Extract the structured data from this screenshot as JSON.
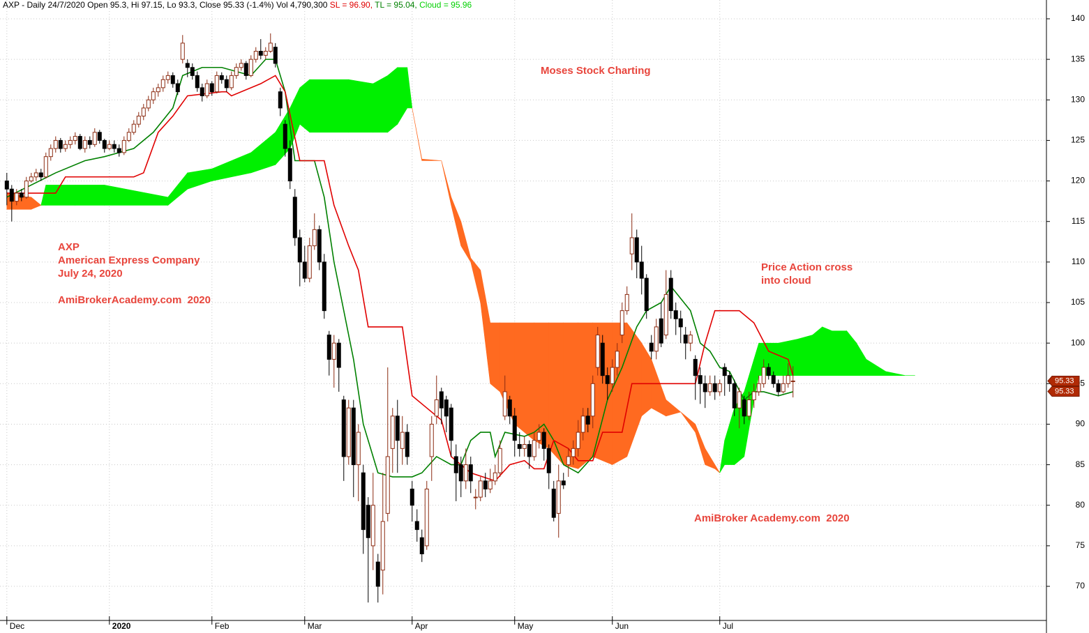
{
  "chart_data": {
    "type": "candlestick",
    "header": {
      "main": "AXP - Daily 24/7/2020 Open 95.3, Hi 97.15, Lo 93.3, Close 95.33 (-1.4%) Vol 4,790,300",
      "sl": "SL = 96.90,",
      "tl": "TL = 95.04,",
      "cloud": "Cloud = 95.96"
    },
    "annotations": [
      "Moses Stock Charting",
      "AXP",
      "American Express Company",
      "July 24, 2020",
      "AmiBrokerAcademy.com  2020",
      "Price Action cross",
      "into cloud",
      "AmiBroker Academy.com  2020"
    ],
    "xlim": [
      -1.4,
      212.9
    ],
    "xticks": [
      {
        "value": 0,
        "label": "Dec"
      },
      {
        "value": 21,
        "label": "2020"
      },
      {
        "value": 42,
        "label": "Feb"
      },
      {
        "value": 61,
        "label": "Mar"
      },
      {
        "value": 83,
        "label": "Apr"
      },
      {
        "value": 104,
        "label": "May"
      },
      {
        "value": 124,
        "label": "Jun"
      },
      {
        "value": 146,
        "label": "Jul"
      }
    ],
    "ylim": [
      65.79,
      142.32
    ],
    "yticks": [
      70,
      75,
      80,
      85,
      90,
      95,
      100,
      105,
      110,
      115,
      120,
      125,
      130,
      135,
      140
    ],
    "grid": true,
    "up_color": "#ffffff",
    "up_edge": "#8b2a10",
    "down_color": "#000000",
    "ohlc": [
      [
        120,
        121,
        117,
        119
      ],
      [
        119,
        119.5,
        115,
        117.5
      ],
      [
        117.5,
        119,
        117,
        118.5
      ],
      [
        118.5,
        119,
        117.5,
        118
      ],
      [
        118,
        120.5,
        117.8,
        120
      ],
      [
        120,
        121,
        119.8,
        120.5
      ],
      [
        120.5,
        121.5,
        120,
        121
      ],
      [
        121,
        121.5,
        120,
        120.5
      ],
      [
        120.5,
        123.5,
        120.3,
        123
      ],
      [
        123,
        124.5,
        122.5,
        124
      ],
      [
        124,
        125.5,
        123.5,
        125
      ],
      [
        125,
        125.3,
        123.5,
        124
      ],
      [
        124,
        125,
        123.6,
        124.5
      ],
      [
        124.5,
        125.5,
        124,
        125
      ],
      [
        125,
        126,
        124.5,
        125.5
      ],
      [
        125.5,
        125.8,
        123.8,
        124
      ],
      [
        124,
        125.5,
        123.5,
        125
      ],
      [
        125,
        125.5,
        124,
        124.5
      ],
      [
        124.5,
        126.5,
        124.2,
        126
      ],
      [
        126,
        126.3,
        124.6,
        125
      ],
      [
        125,
        125.2,
        123.5,
        124
      ],
      [
        124,
        125,
        123.8,
        124.5
      ],
      [
        124.5,
        125,
        123.5,
        124
      ],
      [
        124,
        124.5,
        123,
        123.5
      ],
      [
        123.5,
        125.5,
        123.2,
        125
      ],
      [
        125,
        126.5,
        124.8,
        126
      ],
      [
        126,
        127.5,
        125.7,
        127
      ],
      [
        127,
        128.5,
        126.6,
        128
      ],
      [
        128,
        129.5,
        127.5,
        129
      ],
      [
        129,
        130.5,
        128.6,
        130
      ],
      [
        130,
        131.5,
        129.5,
        131
      ],
      [
        131,
        132,
        130.4,
        131.5
      ],
      [
        131.5,
        133,
        131,
        132.5
      ],
      [
        132.5,
        133.5,
        132,
        133
      ],
      [
        133,
        133.4,
        131.5,
        132
      ],
      [
        132,
        132.5,
        130.6,
        131
      ],
      [
        135,
        138,
        134.5,
        137
      ],
      [
        134.5,
        135,
        132.8,
        134
      ],
      [
        134,
        134.5,
        132.5,
        133
      ],
      [
        133,
        133.5,
        131,
        131.5
      ],
      [
        131.5,
        132,
        129.8,
        130.5
      ],
      [
        130.5,
        132.5,
        130.2,
        132
      ],
      [
        132,
        132.3,
        130.5,
        131
      ],
      [
        131,
        133.5,
        130.8,
        133
      ],
      [
        133,
        133.4,
        132,
        132.5
      ],
      [
        132.5,
        133,
        131,
        131.5
      ],
      [
        131.5,
        133.5,
        131.2,
        133
      ],
      [
        133,
        134.5,
        132.6,
        134
      ],
      [
        134,
        135,
        133.6,
        134.5
      ],
      [
        134.5,
        134.8,
        132.5,
        133
      ],
      [
        133,
        135.5,
        132.8,
        135
      ],
      [
        135,
        136.5,
        134.6,
        136
      ],
      [
        136,
        137.5,
        135,
        135.5
      ],
      [
        135.5,
        136.5,
        135,
        136
      ],
      [
        136,
        138.2,
        135.8,
        137
      ],
      [
        136.5,
        137,
        134,
        134.5
      ],
      [
        131,
        131.5,
        128,
        129
      ],
      [
        127,
        127.5,
        123,
        124
      ],
      [
        124,
        125,
        119,
        120
      ],
      [
        118,
        119,
        112,
        113
      ],
      [
        113,
        114,
        107,
        110
      ],
      [
        110,
        112,
        107.5,
        108
      ],
      [
        108,
        113,
        107.5,
        112
      ],
      [
        112,
        116,
        111.5,
        114
      ],
      [
        114,
        114.5,
        109,
        110
      ],
      [
        110,
        111,
        103,
        104
      ],
      [
        101,
        101.5,
        96,
        98
      ],
      [
        98,
        101,
        94.5,
        100
      ],
      [
        100,
        100.5,
        94,
        97
      ],
      [
        93,
        93.5,
        83,
        86
      ],
      [
        86,
        93,
        85,
        92
      ],
      [
        92,
        93,
        81,
        85
      ],
      [
        85,
        90,
        80.5,
        89
      ],
      [
        84,
        85,
        74,
        77
      ],
      [
        80,
        81,
        68,
        76
      ],
      [
        75,
        84,
        72,
        80
      ],
      [
        73,
        74,
        68,
        70
      ],
      [
        72,
        84,
        69,
        78
      ],
      [
        79,
        97,
        78,
        86
      ],
      [
        87,
        92,
        84,
        91
      ],
      [
        91,
        93,
        84,
        88
      ],
      [
        87,
        91,
        85,
        89
      ],
      [
        89,
        90,
        85,
        86
      ],
      [
        82,
        83,
        78,
        80
      ],
      [
        78,
        79.5,
        75.5,
        77
      ],
      [
        76,
        77,
        73,
        74
      ],
      [
        75,
        83,
        74.5,
        82
      ],
      [
        86,
        91,
        83,
        90
      ],
      [
        91,
        96,
        90,
        93
      ],
      [
        94,
        94.5,
        90,
        92
      ],
      [
        93,
        93.5,
        89,
        91
      ],
      [
        92,
        92.5,
        86,
        88
      ],
      [
        86,
        87.5,
        80.5,
        84
      ],
      [
        85,
        86,
        81,
        83
      ],
      [
        83,
        87,
        82,
        85
      ],
      [
        85,
        86,
        81.5,
        83
      ],
      [
        81,
        82,
        79.5,
        81
      ],
      [
        81,
        83.5,
        80.5,
        83
      ],
      [
        83,
        84,
        81,
        82
      ],
      [
        82,
        84.5,
        81.5,
        83
      ],
      [
        83,
        85,
        82.5,
        84
      ],
      [
        84,
        88,
        83.5,
        87
      ],
      [
        91,
        96,
        90.5,
        94
      ],
      [
        93,
        93.5,
        90,
        91
      ],
      [
        91,
        92,
        86,
        88
      ],
      [
        87.5,
        89,
        86,
        87
      ],
      [
        87,
        88.5,
        86,
        87.5
      ],
      [
        87.5,
        88,
        84.5,
        86
      ],
      [
        86,
        89,
        85.5,
        88
      ],
      [
        88,
        90,
        87,
        89
      ],
      [
        89,
        89.5,
        85.5,
        87
      ],
      [
        87,
        87.5,
        82,
        84
      ],
      [
        82,
        83,
        78,
        78.5
      ],
      [
        79,
        85,
        76,
        83
      ],
      [
        83,
        84,
        82,
        82.5
      ],
      [
        85,
        87,
        83.5,
        86
      ],
      [
        86,
        88,
        85,
        87
      ],
      [
        87,
        90.5,
        86,
        89
      ],
      [
        89,
        92,
        88,
        91
      ],
      [
        91,
        92,
        89,
        90
      ],
      [
        91,
        96,
        89.5,
        95
      ],
      [
        97,
        102,
        96,
        101
      ],
      [
        100,
        101,
        95,
        96
      ],
      [
        96,
        97,
        93,
        95
      ],
      [
        95,
        98,
        94,
        97
      ],
      [
        97,
        100,
        96,
        99
      ],
      [
        101,
        105,
        100,
        104
      ],
      [
        104,
        107,
        103.5,
        106
      ],
      [
        111,
        116,
        109,
        113
      ],
      [
        113,
        114,
        108,
        110
      ],
      [
        110,
        112,
        106,
        108
      ],
      [
        108,
        108.5,
        103,
        104
      ],
      [
        100,
        101,
        98,
        99
      ],
      [
        99,
        103,
        98,
        102
      ],
      [
        103,
        105,
        99.5,
        100
      ],
      [
        101,
        109,
        100.5,
        106
      ],
      [
        108,
        109,
        103,
        104
      ],
      [
        104,
        105,
        101,
        103
      ],
      [
        103,
        104,
        100,
        102
      ],
      [
        101,
        102,
        98,
        100
      ],
      [
        100,
        101.5,
        99,
        101
      ],
      [
        98,
        98.5,
        93,
        96
      ],
      [
        96,
        97,
        92.5,
        95
      ],
      [
        95,
        96,
        92,
        94
      ],
      [
        94,
        96,
        93.5,
        95
      ],
      [
        95,
        96,
        93,
        94
      ],
      [
        94,
        95.5,
        93.5,
        95
      ],
      [
        97,
        97.5,
        93.5,
        96
      ],
      [
        96,
        96.5,
        94,
        95
      ],
      [
        95,
        95.5,
        91,
        92
      ],
      [
        92,
        94.5,
        89.5,
        94
      ],
      [
        93,
        93.5,
        90,
        91
      ],
      [
        91,
        94,
        90.5,
        93
      ],
      [
        93,
        95,
        92,
        94
      ],
      [
        94,
        96,
        93.5,
        95
      ],
      [
        95,
        98,
        94.5,
        97
      ],
      [
        97,
        97.5,
        95.5,
        96
      ],
      [
        96,
        96.5,
        94.5,
        95
      ],
      [
        95,
        95.5,
        93.5,
        94
      ],
      [
        94,
        96,
        93.8,
        95
      ],
      [
        95,
        97.5,
        94.5,
        96
      ],
      [
        95.3,
        97.15,
        93.3,
        95.33
      ]
    ],
    "lines": [
      {
        "color": "#008000",
        "x": [
          0,
          10,
          16,
          20,
          26,
          30,
          34,
          36,
          40,
          44,
          50,
          53,
          55,
          57,
          59,
          63,
          65,
          67,
          69,
          71,
          73,
          76,
          79,
          83,
          85,
          88,
          91,
          93,
          95,
          97,
          99,
          100,
          102,
          106,
          108,
          110,
          112,
          114,
          117,
          120,
          123,
          126,
          129,
          131,
          134,
          136,
          140,
          142,
          144,
          146,
          148,
          151,
          153,
          155,
          158,
          161
        ],
        "values": [
          118,
          121,
          122.5,
          123,
          124,
          126,
          129,
          133,
          134,
          134,
          133,
          135,
          135,
          131,
          122.5,
          122.5,
          118,
          110,
          104,
          98,
          90,
          84,
          83.5,
          83.5,
          84,
          86,
          85,
          85,
          88,
          89,
          89,
          86,
          89,
          88.5,
          89,
          90,
          88,
          85,
          84,
          86,
          93,
          97,
          102,
          104,
          105,
          107,
          104,
          100,
          99,
          97,
          96.5,
          93,
          94,
          94,
          93.5,
          94
        ]
      },
      {
        "color": "#e00000",
        "x": [
          0,
          10,
          12,
          26,
          28,
          31,
          34,
          37,
          44,
          45,
          46,
          52,
          55,
          57,
          60,
          65,
          67,
          70,
          72,
          74,
          81,
          83,
          86,
          89,
          91,
          95,
          100,
          103,
          106,
          108,
          110,
          112,
          115,
          117,
          120,
          122,
          126,
          128,
          141,
          143,
          145,
          150,
          153,
          156,
          160,
          161
        ],
        "values": [
          118.5,
          118.5,
          120.5,
          120.5,
          121,
          126,
          128,
          130.5,
          131,
          131,
          130.5,
          132,
          133,
          131,
          122.5,
          122.5,
          117,
          112,
          109,
          102,
          102,
          93.5,
          92,
          90.5,
          86,
          84,
          83,
          85,
          85.5,
          84.5,
          84.5,
          88,
          87,
          85.5,
          85.5,
          89,
          89,
          95,
          95,
          100,
          104,
          104,
          102.5,
          99,
          98,
          96
        ]
      }
    ],
    "cloud": {
      "up_color": "#00f000",
      "down_color": "#ff6a20",
      "x": [
        0,
        5,
        7,
        8,
        14,
        20,
        33,
        37,
        42,
        50,
        55,
        58,
        60,
        62,
        70,
        75,
        78,
        80,
        82,
        83,
        85,
        89,
        91,
        93,
        95,
        97,
        99,
        101,
        104,
        108,
        111,
        114,
        117,
        120,
        124,
        127,
        130,
        132,
        135,
        138,
        141,
        143,
        145,
        146,
        147,
        149,
        151,
        153,
        154,
        158,
        162,
        165,
        167,
        169,
        172,
        174,
        176,
        180,
        184,
        186
      ],
      "span_a": [
        116.5,
        116.5,
        117,
        119.5,
        119.5,
        119.5,
        118,
        121,
        121.5,
        123.5,
        126,
        129,
        131.5,
        132.5,
        132.5,
        132,
        133,
        134,
        134,
        129,
        122.5,
        122.5,
        117,
        112,
        110,
        105,
        95,
        94,
        90,
        88,
        87,
        85,
        84.5,
        86,
        85,
        86,
        91,
        92,
        91,
        91.5,
        89,
        85,
        84.5,
        84,
        88,
        92,
        94,
        98,
        100,
        100,
        100.5,
        101,
        102,
        101.5,
        101.5,
        100,
        98,
        96.5,
        96,
        96
      ],
      "span_b": [
        118.5,
        118,
        117,
        117,
        117,
        117,
        117,
        119,
        120,
        121,
        122,
        124,
        127,
        126,
        126,
        126,
        126,
        127,
        129,
        129,
        122.7,
        122.5,
        118,
        115,
        110.5,
        109,
        102.5,
        102.5,
        102.5,
        102.5,
        102.5,
        102.5,
        102.5,
        102.5,
        102.5,
        102.5,
        100,
        98,
        93,
        91.5,
        90,
        87,
        85,
        84,
        85,
        85,
        86,
        93,
        96,
        96,
        96,
        96,
        96,
        96,
        96,
        96,
        96,
        96,
        96,
        96
      ]
    }
  }
}
